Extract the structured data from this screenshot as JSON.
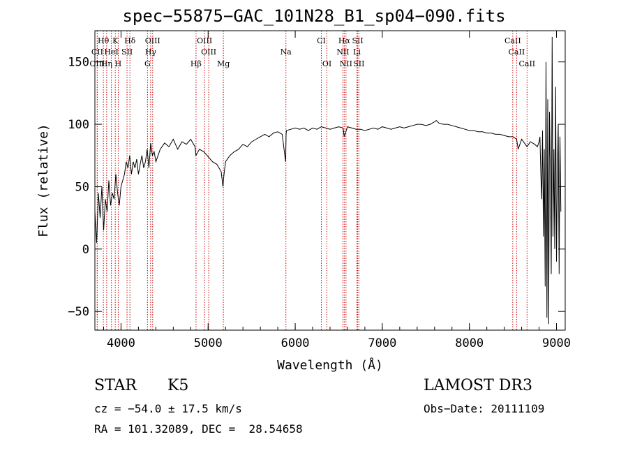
{
  "title": "spec−55875−GAC_101N28_B1_sp04−090.fits",
  "info": {
    "object_class": "STAR",
    "subclass": "K5",
    "survey": "LAMOST DR3",
    "cz": "cz = −54.0 ± 17.5 km/s",
    "obs_date": "Obs−Date: 20111109",
    "radec": "RA = 101.32089, DEC =  28.54658"
  },
  "chart_data": {
    "type": "line",
    "title": "spec−55875−GAC_101N28_B1_sp04−090.fits",
    "xlabel": "Wavelength (Å)",
    "ylabel": "Flux (relative)",
    "xlim": [
      3700,
      9100
    ],
    "ylim": [
      -65,
      175
    ],
    "xticks": [
      4000,
      5000,
      6000,
      7000,
      8000,
      9000
    ],
    "yticks": [
      -50,
      0,
      50,
      100,
      150
    ],
    "x": [
      3700,
      3720,
      3740,
      3760,
      3780,
      3800,
      3820,
      3840,
      3860,
      3880,
      3900,
      3920,
      3940,
      3960,
      3980,
      4000,
      4020,
      4040,
      4060,
      4080,
      4100,
      4120,
      4140,
      4160,
      4180,
      4200,
      4220,
      4240,
      4260,
      4280,
      4300,
      4320,
      4340,
      4360,
      4380,
      4400,
      4450,
      4500,
      4550,
      4600,
      4650,
      4700,
      4750,
      4800,
      4850,
      4860,
      4900,
      4950,
      5000,
      5050,
      5100,
      5150,
      5170,
      5180,
      5200,
      5250,
      5300,
      5350,
      5400,
      5450,
      5500,
      5550,
      5600,
      5650,
      5700,
      5750,
      5800,
      5850,
      5890,
      5895,
      5900,
      5950,
      6000,
      6050,
      6100,
      6150,
      6200,
      6250,
      6300,
      6350,
      6400,
      6450,
      6500,
      6550,
      6563,
      6600,
      6650,
      6700,
      6750,
      6800,
      6850,
      6900,
      6950,
      7000,
      7050,
      7100,
      7150,
      7200,
      7250,
      7300,
      7350,
      7400,
      7450,
      7500,
      7550,
      7600,
      7620,
      7650,
      7700,
      7750,
      7800,
      7850,
      7900,
      7950,
      8000,
      8050,
      8100,
      8150,
      8200,
      8250,
      8300,
      8350,
      8400,
      8450,
      8500,
      8542,
      8560,
      8600,
      8662,
      8700,
      8750,
      8780,
      8800,
      8810,
      8820,
      8830,
      8840,
      8850,
      8860,
      8870,
      8880,
      8890,
      8900,
      8910,
      8920,
      8930,
      8940,
      8950,
      8960,
      8970,
      8980,
      8990,
      9000,
      9010,
      9020,
      9030,
      9040,
      9050
    ],
    "y": [
      30,
      5,
      45,
      25,
      50,
      15,
      40,
      30,
      55,
      35,
      45,
      40,
      60,
      45,
      35,
      50,
      55,
      60,
      70,
      65,
      75,
      60,
      70,
      65,
      72,
      60,
      68,
      75,
      65,
      70,
      80,
      65,
      85,
      75,
      78,
      70,
      80,
      85,
      82,
      88,
      80,
      86,
      84,
      88,
      82,
      75,
      80,
      78,
      74,
      70,
      68,
      62,
      50,
      58,
      70,
      75,
      78,
      80,
      84,
      82,
      86,
      88,
      90,
      92,
      90,
      93,
      94,
      92,
      70,
      92,
      95,
      96,
      97,
      96,
      97,
      95,
      97,
      96,
      98,
      97,
      96,
      97,
      98,
      97,
      90,
      98,
      97,
      96,
      96,
      95,
      96,
      97,
      96,
      98,
      97,
      96,
      97,
      98,
      97,
      98,
      99,
      100,
      100,
      99,
      100,
      102,
      103,
      101,
      100,
      100,
      99,
      98,
      97,
      96,
      95,
      95,
      94,
      94,
      93,
      93,
      92,
      92,
      91,
      90,
      90,
      88,
      80,
      88,
      82,
      86,
      84,
      82,
      86,
      90,
      60,
      40,
      95,
      10,
      80,
      -30,
      150,
      -55,
      120,
      -60,
      110,
      60,
      -20,
      170,
      10,
      80,
      0,
      130,
      -10,
      60,
      100,
      -20,
      90,
      30
    ]
  },
  "lines": [
    {
      "label": "Hθ",
      "x": 3797,
      "row": 0
    },
    {
      "label": "K",
      "x": 3934,
      "row": 0
    },
    {
      "label": "Hδ",
      "x": 4102,
      "row": 0
    },
    {
      "label": "OIII",
      "x": 4363,
      "row": 0
    },
    {
      "label": "OIII",
      "x": 4959,
      "row": 0
    },
    {
      "label": "CI",
      "x": 6300,
      "row": 0
    },
    {
      "label": "Hα",
      "x": 6563,
      "row": 0
    },
    {
      "label": "SII",
      "x": 6717,
      "row": 0
    },
    {
      "label": "CaII",
      "x": 8498,
      "row": 0
    },
    {
      "label": "CII",
      "x": 3727,
      "row": 1
    },
    {
      "label": "HeI",
      "x": 3889,
      "row": 1
    },
    {
      "label": "SII",
      "x": 4069,
      "row": 1
    },
    {
      "label": "Hγ",
      "x": 4340,
      "row": 1
    },
    {
      "label": "OIII",
      "x": 5007,
      "row": 1
    },
    {
      "label": "Na",
      "x": 5893,
      "row": 1
    },
    {
      "label": "NII",
      "x": 6548,
      "row": 1
    },
    {
      "label": "Li",
      "x": 6708,
      "row": 1
    },
    {
      "label": "CaII",
      "x": 8542,
      "row": 1
    },
    {
      "label": "OIII",
      "x": 3727,
      "row": 2
    },
    {
      "label": "Hη",
      "x": 3835,
      "row": 2
    },
    {
      "label": "H",
      "x": 3968,
      "row": 2
    },
    {
      "label": "G",
      "x": 4304,
      "row": 2
    },
    {
      "label": "Hβ",
      "x": 4861,
      "row": 2
    },
    {
      "label": "Mg",
      "x": 5175,
      "row": 2
    },
    {
      "label": "OI",
      "x": 6364,
      "row": 2
    },
    {
      "label": "NII",
      "x": 6583,
      "row": 2
    },
    {
      "label": "SII",
      "x": 6731,
      "row": 2
    },
    {
      "label": "CaII",
      "x": 8662,
      "row": 2
    }
  ]
}
